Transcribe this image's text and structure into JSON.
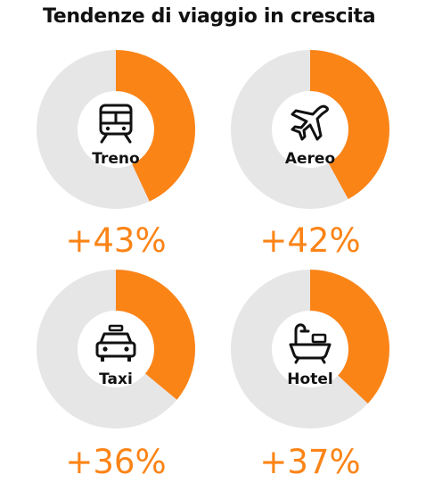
{
  "title": "Tendenze di viaggio in crescita",
  "colors": {
    "accent": "#fb8417",
    "track": "#e6e6e6",
    "text": "#111111"
  },
  "chart_data": {
    "type": "pie",
    "subtype": "donut-grid",
    "title": "Tendenze di viaggio in crescita",
    "categories": [
      "Treno",
      "Aereo",
      "Taxi",
      "Hotel"
    ],
    "values": [
      43,
      42,
      36,
      37
    ],
    "value_labels": [
      "+43%",
      "+42%",
      "+36%",
      "+37%"
    ],
    "icons": [
      "train-icon",
      "airplane-icon",
      "taxi-icon",
      "bathtub-icon"
    ],
    "unit": "%"
  }
}
